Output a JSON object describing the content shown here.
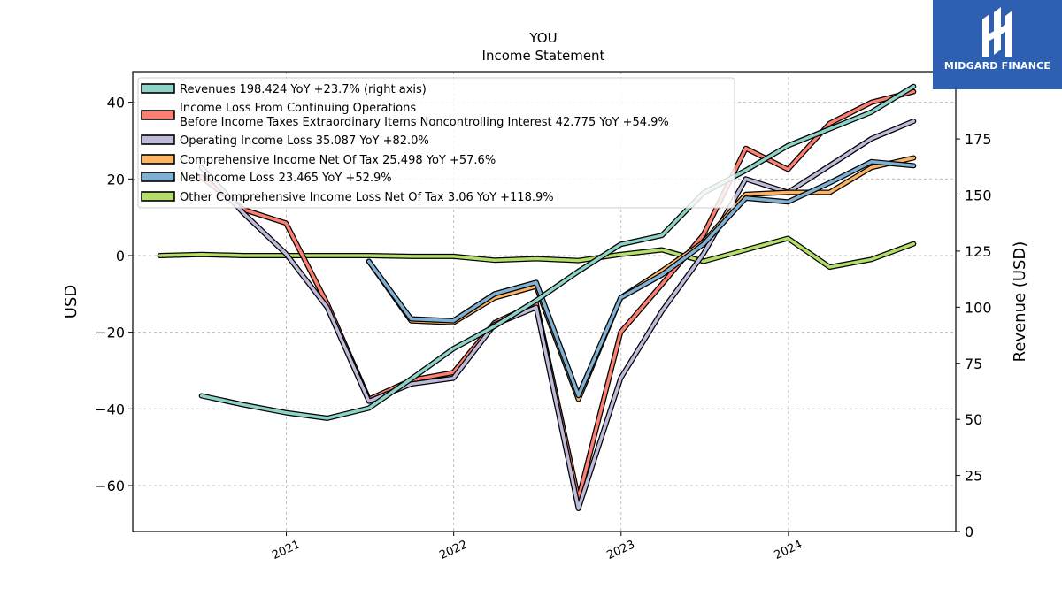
{
  "header": {
    "title": "YOU",
    "subtitle": "Income Statement"
  },
  "logo": {
    "text": "MIDGARD FINANCE",
    "background": "#2e5fb0"
  },
  "chart_data": {
    "type": "line",
    "title": "YOU",
    "subtitle": "Income Statement",
    "ylabel": "USD",
    "ylabel_right": "Revenue (USD)",
    "ylim": [
      -72,
      48
    ],
    "ylim_right": [
      0,
      205
    ],
    "xlim": [
      "2020-02-01",
      "2024-12-31"
    ],
    "yticks": [
      -60,
      -40,
      -20,
      0,
      20,
      40
    ],
    "yticks_labels": [
      "−60",
      "−40",
      "−20",
      "0",
      "20",
      "40"
    ],
    "yticks_right": [
      0,
      25,
      50,
      75,
      100,
      125,
      150,
      175,
      200
    ],
    "yticks_right_labels": [
      "0",
      "25",
      "50",
      "75",
      "100",
      "125",
      "150",
      "175",
      "200"
    ],
    "xticks": [
      "2021-01-01",
      "2022-01-01",
      "2023-01-01",
      "2024-01-01"
    ],
    "xticks_labels": [
      "2021",
      "2022",
      "2023",
      "2024"
    ],
    "grid": true,
    "legend_position": "top-left",
    "series": [
      {
        "name": "Revenues",
        "legend_label": "Revenues  198.424 YoY +23.7% (right axis)",
        "color": "#8dd3c7",
        "axis": "right",
        "points": [
          [
            "2020-06-30",
            60.5
          ],
          [
            "2020-09-30",
            56.5
          ],
          [
            "2020-12-31",
            53.0
          ],
          [
            "2021-03-31",
            50.5
          ],
          [
            "2021-06-30",
            55.0
          ],
          [
            "2021-09-30",
            68.0
          ],
          [
            "2021-12-31",
            81.5
          ],
          [
            "2022-03-31",
            91.5
          ],
          [
            "2022-06-30",
            103.0
          ],
          [
            "2022-09-30",
            116.0
          ],
          [
            "2022-12-31",
            128.0
          ],
          [
            "2023-03-31",
            132.0
          ],
          [
            "2023-06-30",
            151.0
          ],
          [
            "2023-09-30",
            161.0
          ],
          [
            "2023-12-31",
            172.0
          ],
          [
            "2024-03-31",
            179.5
          ],
          [
            "2024-06-30",
            187.0
          ],
          [
            "2024-09-30",
            198.4
          ]
        ]
      },
      {
        "name": "Income Loss From Continuing Operations Before Income Taxes Extraordinary Items Noncontrolling Interest",
        "legend_label_line1": "Income Loss From Continuing Operations",
        "legend_label_line2": "Before Income Taxes Extraordinary Items Noncontrolling Interest  42.775 YoY +54.9%",
        "color": "#fb8072",
        "axis": "left",
        "points": [
          [
            "2020-06-30",
            20.5
          ],
          [
            "2020-09-30",
            12.0
          ],
          [
            "2020-12-31",
            8.5
          ],
          [
            "2021-03-31",
            -12.5
          ],
          [
            "2021-06-30",
            -37.5
          ],
          [
            "2021-09-30",
            -32.5
          ],
          [
            "2021-12-31",
            -30.5
          ],
          [
            "2022-03-31",
            -17.5
          ],
          [
            "2022-06-30",
            -12.5
          ],
          [
            "2022-09-30",
            -63.5
          ],
          [
            "2022-12-31",
            -20.0
          ],
          [
            "2023-03-31",
            -7.5
          ],
          [
            "2023-06-30",
            5.5
          ],
          [
            "2023-09-30",
            28.0
          ],
          [
            "2023-12-31",
            22.5
          ],
          [
            "2024-03-31",
            34.5
          ],
          [
            "2024-06-30",
            40.0
          ],
          [
            "2024-09-30",
            42.775
          ]
        ]
      },
      {
        "name": "Operating Income Loss",
        "legend_label": "Operating Income Loss  35.087 YoY +82.0%",
        "color": "#bebada",
        "axis": "left",
        "points": [
          [
            "2020-06-30",
            23.0
          ],
          [
            "2020-09-30",
            11.0
          ],
          [
            "2020-12-31",
            0.5
          ],
          [
            "2021-03-31",
            -13.5
          ],
          [
            "2021-06-30",
            -38.0
          ],
          [
            "2021-09-30",
            -33.5
          ],
          [
            "2021-12-31",
            -32.0
          ],
          [
            "2022-03-31",
            -18.0
          ],
          [
            "2022-06-30",
            -13.5
          ],
          [
            "2022-09-30",
            -66.0
          ],
          [
            "2022-12-31",
            -32.0
          ],
          [
            "2023-03-31",
            -14.5
          ],
          [
            "2023-06-30",
            0.5
          ],
          [
            "2023-09-30",
            20.0
          ],
          [
            "2023-12-31",
            16.5
          ],
          [
            "2024-03-31",
            23.5
          ],
          [
            "2024-06-30",
            30.5
          ],
          [
            "2024-09-30",
            35.087
          ]
        ]
      },
      {
        "name": "Comprehensive Income Net Of Tax",
        "legend_label": "Comprehensive Income Net Of Tax  25.498 YoY +57.6%",
        "color": "#fdb462",
        "axis": "left",
        "points": [
          [
            "2021-06-30",
            -1.5
          ],
          [
            "2021-09-30",
            -17.0
          ],
          [
            "2021-12-31",
            -17.5
          ],
          [
            "2022-03-31",
            -11.0
          ],
          [
            "2022-06-30",
            -8.0
          ],
          [
            "2022-09-30",
            -37.5
          ],
          [
            "2022-12-31",
            -11.0
          ],
          [
            "2023-03-31",
            -4.0
          ],
          [
            "2023-06-30",
            3.5
          ],
          [
            "2023-09-30",
            16.0
          ],
          [
            "2023-12-31",
            16.5
          ],
          [
            "2024-03-31",
            16.5
          ],
          [
            "2024-06-30",
            23.0
          ],
          [
            "2024-09-30",
            25.498
          ]
        ]
      },
      {
        "name": "Net Income Loss",
        "legend_label": "Net Income Loss  23.465 YoY +52.9%",
        "color": "#80b1d3",
        "axis": "left",
        "points": [
          [
            "2021-06-30",
            -1.5
          ],
          [
            "2021-09-30",
            -16.5
          ],
          [
            "2021-12-31",
            -17.0
          ],
          [
            "2022-03-31",
            -10.0
          ],
          [
            "2022-06-30",
            -7.0
          ],
          [
            "2022-09-30",
            -36.5
          ],
          [
            "2022-12-31",
            -11.0
          ],
          [
            "2023-03-31",
            -5.0
          ],
          [
            "2023-06-30",
            3.0
          ],
          [
            "2023-09-30",
            15.0
          ],
          [
            "2023-12-31",
            14.0
          ],
          [
            "2024-03-31",
            19.0
          ],
          [
            "2024-06-30",
            24.5
          ],
          [
            "2024-09-30",
            23.465
          ]
        ]
      },
      {
        "name": "Other Comprehensive Income Loss Net Of Tax",
        "legend_label": "Other Comprehensive Income Loss Net Of Tax  3.06 YoY +118.9%",
        "color": "#b3de69",
        "axis": "left",
        "points": [
          [
            "2020-03-31",
            0.0
          ],
          [
            "2020-06-30",
            0.3
          ],
          [
            "2020-09-30",
            0.0
          ],
          [
            "2020-12-31",
            0.0
          ],
          [
            "2021-03-31",
            0.0
          ],
          [
            "2021-06-30",
            0.0
          ],
          [
            "2021-09-30",
            -0.2
          ],
          [
            "2021-12-31",
            -0.2
          ],
          [
            "2022-03-31",
            -1.2
          ],
          [
            "2022-06-30",
            -0.8
          ],
          [
            "2022-09-30",
            -1.3
          ],
          [
            "2022-12-31",
            0.3
          ],
          [
            "2023-03-31",
            1.5
          ],
          [
            "2023-06-30",
            -1.5
          ],
          [
            "2023-09-30",
            1.5
          ],
          [
            "2023-12-31",
            4.5
          ],
          [
            "2024-03-31",
            -3.0
          ],
          [
            "2024-06-30",
            -1.0
          ],
          [
            "2024-09-30",
            3.06
          ]
        ]
      }
    ]
  }
}
